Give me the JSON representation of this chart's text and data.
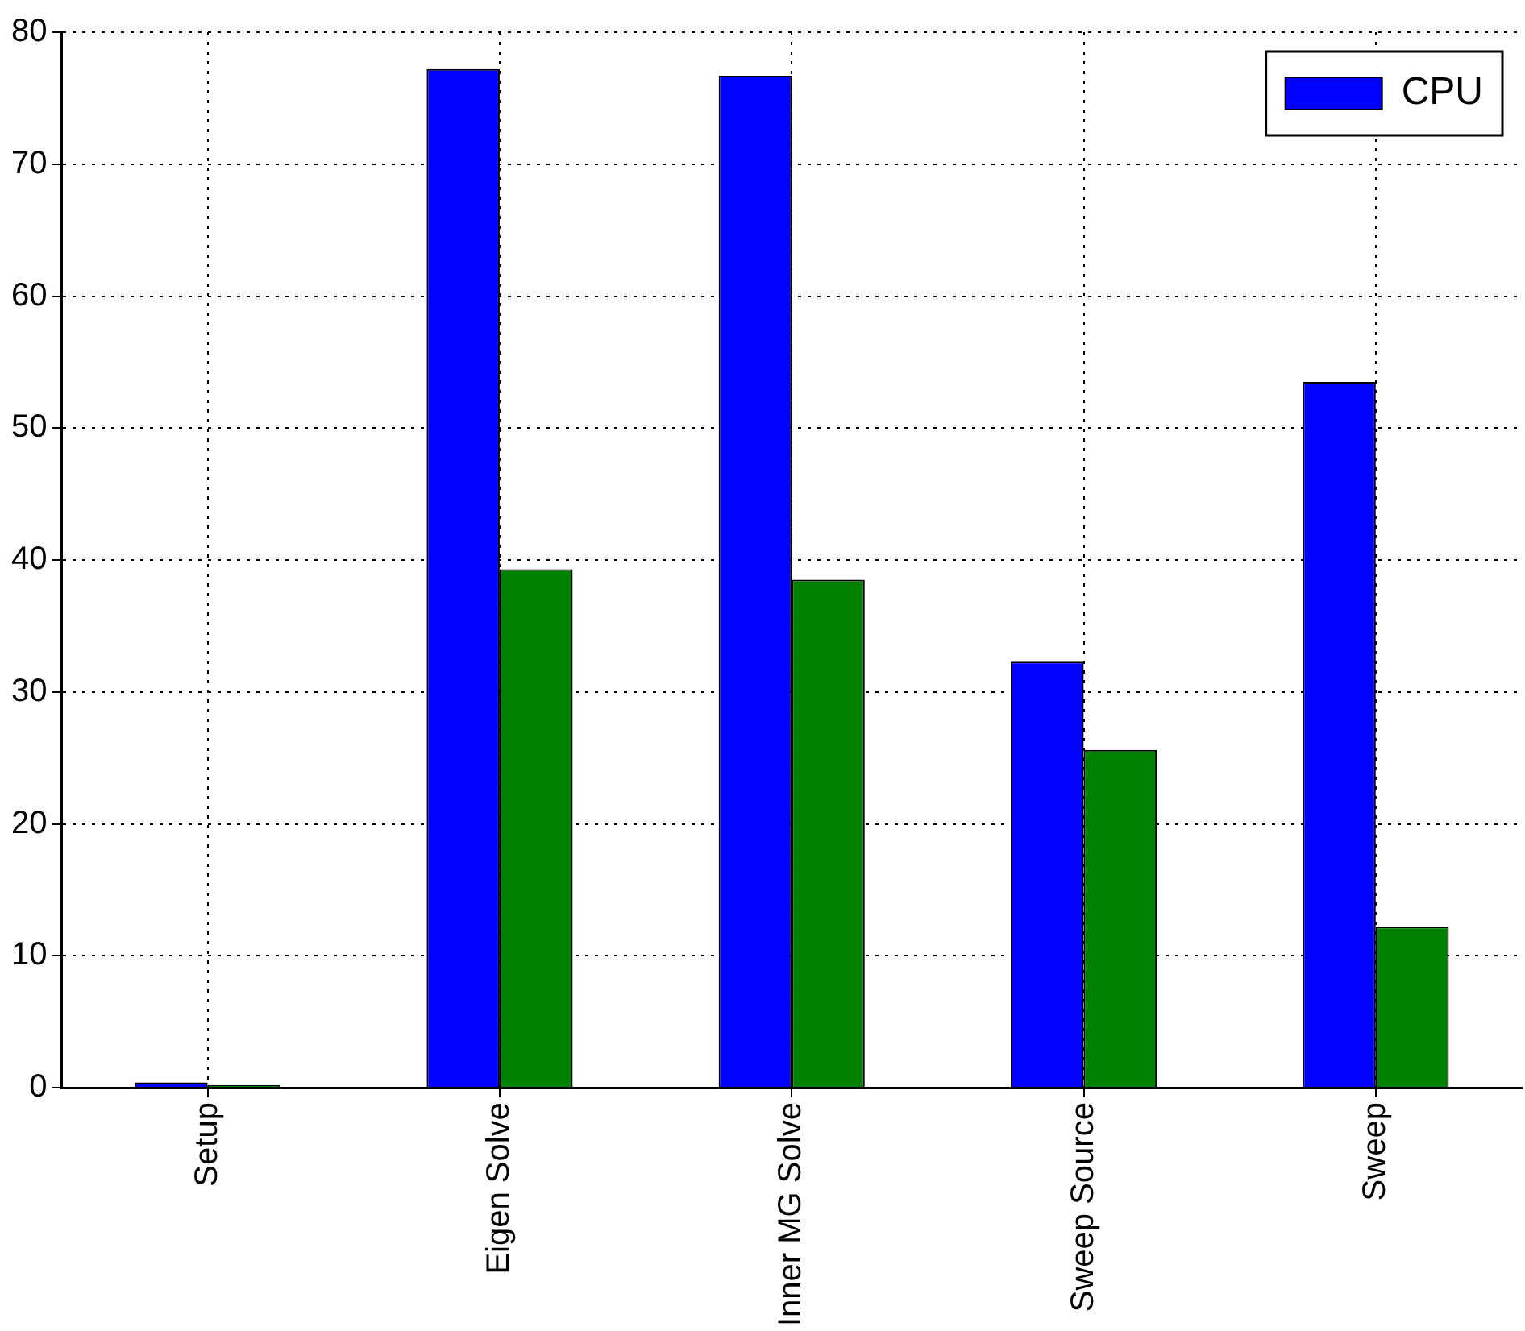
{
  "chart_data": {
    "type": "bar",
    "categories": [
      "Setup",
      "Eigen Solve",
      "Inner MG Solve",
      "Sweep Source",
      "Sweep"
    ],
    "series": [
      {
        "name": "CPU",
        "color": "#0000ff",
        "values": [
          0.4,
          77.2,
          76.7,
          32.3,
          53.5
        ]
      },
      {
        "color": "#008000",
        "values": [
          0.2,
          39.3,
          38.5,
          25.6,
          12.2
        ]
      }
    ],
    "ylim": [
      0,
      80
    ],
    "yticks": [
      0,
      10,
      20,
      30,
      40,
      50,
      60,
      70,
      80
    ],
    "grid": true,
    "legend": "top right"
  }
}
